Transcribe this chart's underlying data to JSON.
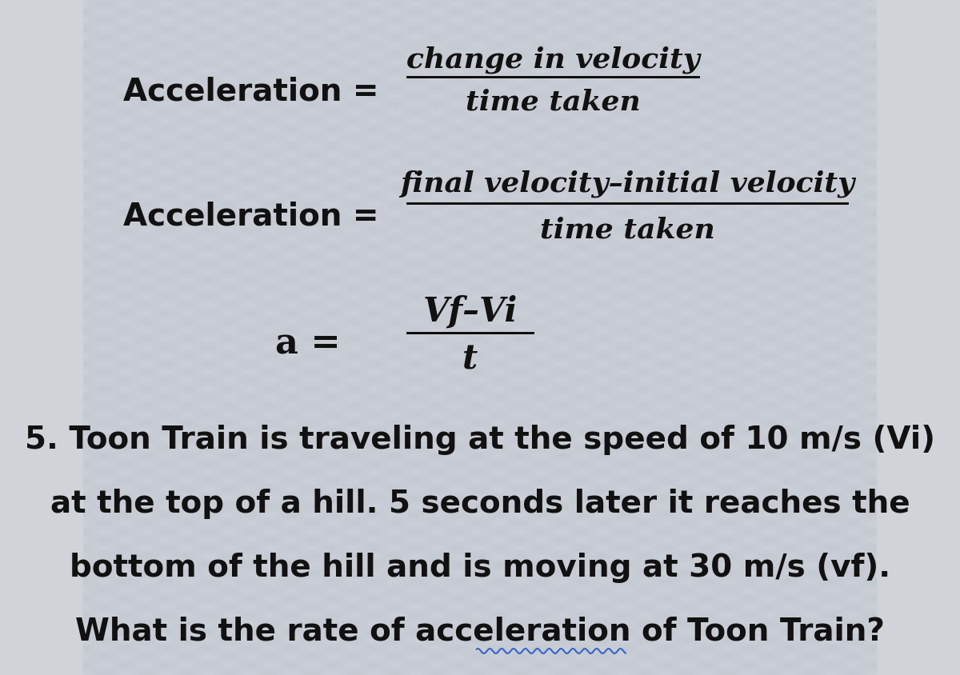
{
  "background_color": "#d0d4d8",
  "text_color": "#111111",
  "fig_width": 12.0,
  "fig_height": 8.45,
  "line1_left": "Acceleration =",
  "line1_num": "change in velocity",
  "line1_den": "time taken",
  "line2_left": "Acceleration =",
  "line2_num": "final velocity–initial velocity",
  "line2_den": "time taken",
  "line3_left": "a =",
  "line3_num": "Vf–Vi",
  "line3_den": "t",
  "problem_line1": "5. Toon Train is traveling at the speed of 10 m/s (Vi)",
  "problem_line2": "at the top of a hill. 5 seconds later it reaches the",
  "problem_line3": "bottom of the hill and is moving at 30 m/s (vf).",
  "problem_line4": "What is the rate of acceleration of Toon Train?",
  "formula_fontsize": 26,
  "problem_fontsize": 28
}
